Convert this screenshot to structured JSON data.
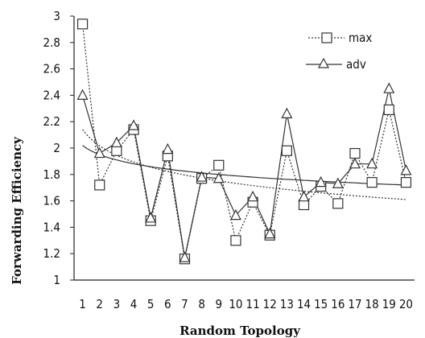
{
  "chart_data": {
    "type": "line",
    "title": "",
    "xlabel": "Random Topology",
    "ylabel": "Forwarding Efficiency",
    "categories": [
      "1",
      "2",
      "3",
      "4",
      "5",
      "6",
      "7",
      "8",
      "9",
      "10",
      "11",
      "12",
      "13",
      "14",
      "15",
      "16",
      "17",
      "18",
      "19",
      "20"
    ],
    "ylim": [
      1,
      3
    ],
    "yticks": [
      "1",
      "1.2",
      "1.4",
      "1.6",
      "1.8",
      "2",
      "2.2",
      "2.4",
      "2.6",
      "2.8",
      "3"
    ],
    "grid": false,
    "legend_position": "top-right",
    "series": [
      {
        "name": "max",
        "marker": "square",
        "line_style": "dotted",
        "color": "#333333",
        "values": [
          2.94,
          1.72,
          1.98,
          2.14,
          1.45,
          1.94,
          1.16,
          1.77,
          1.87,
          1.3,
          1.59,
          1.34,
          1.98,
          1.57,
          1.71,
          1.58,
          1.96,
          1.74,
          2.29,
          1.74
        ]
      },
      {
        "name": "adv",
        "marker": "triangle",
        "line_style": "solid",
        "color": "#333333",
        "values": [
          2.4,
          1.96,
          2.04,
          2.17,
          1.47,
          1.99,
          1.17,
          1.78,
          1.77,
          1.49,
          1.63,
          1.35,
          2.26,
          1.63,
          1.74,
          1.73,
          1.88,
          1.88,
          2.45,
          1.83
        ]
      }
    ],
    "trendlines": [
      {
        "of": "max",
        "kind": "log",
        "line_style": "dotted",
        "start": 2.14,
        "end": 1.61
      },
      {
        "of": "adv",
        "kind": "log",
        "line_style": "solid",
        "start": 2.02,
        "end": 1.72
      }
    ]
  }
}
